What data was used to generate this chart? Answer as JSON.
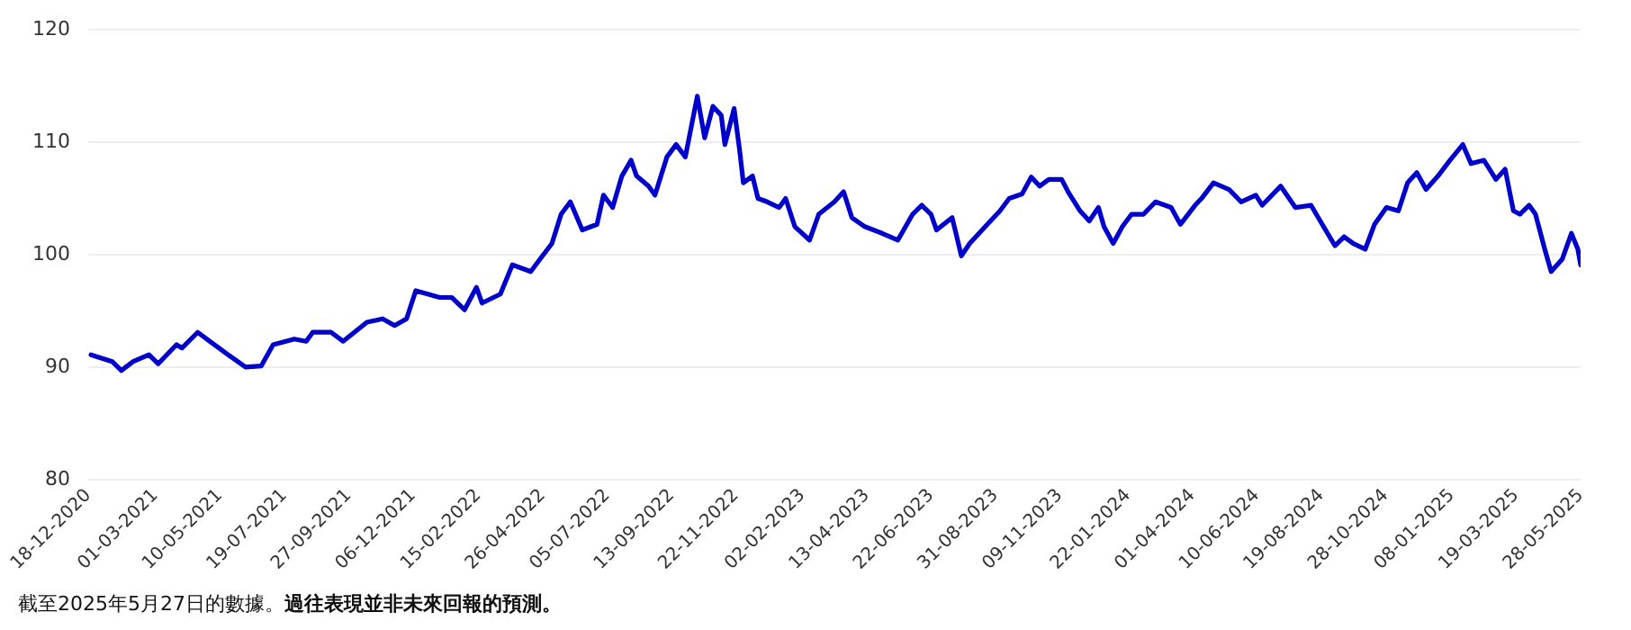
{
  "chart_data": {
    "type": "line",
    "grid": "y",
    "legend": false,
    "marker": "none",
    "line_style": "solid",
    "ylim": [
      80,
      120
    ],
    "yticks": [
      80,
      90,
      100,
      110,
      120
    ],
    "xlim": [
      "2020-12-18",
      "2025-05-28"
    ],
    "xticks": [
      {
        "value": "2020-12-18",
        "label": "18-12-2020"
      },
      {
        "value": "2021-03-01",
        "label": "01-03-2021"
      },
      {
        "value": "2021-05-10",
        "label": "10-05-2021"
      },
      {
        "value": "2021-07-19",
        "label": "19-07-2021"
      },
      {
        "value": "2021-09-27",
        "label": "27-09-2021"
      },
      {
        "value": "2021-12-06",
        "label": "06-12-2021"
      },
      {
        "value": "2022-02-15",
        "label": "15-02-2022"
      },
      {
        "value": "2022-04-26",
        "label": "26-04-2022"
      },
      {
        "value": "2022-07-05",
        "label": "05-07-2022"
      },
      {
        "value": "2022-09-13",
        "label": "13-09-2022"
      },
      {
        "value": "2022-11-22",
        "label": "22-11-2022"
      },
      {
        "value": "2023-02-02",
        "label": "02-02-2023"
      },
      {
        "value": "2023-04-13",
        "label": "13-04-2023"
      },
      {
        "value": "2023-06-22",
        "label": "22-06-2023"
      },
      {
        "value": "2023-08-31",
        "label": "31-08-2023"
      },
      {
        "value": "2023-11-09",
        "label": "09-11-2023"
      },
      {
        "value": "2024-01-22",
        "label": "22-01-2024"
      },
      {
        "value": "2024-04-01",
        "label": "01-04-2024"
      },
      {
        "value": "2024-06-10",
        "label": "10-06-2024"
      },
      {
        "value": "2024-08-19",
        "label": "19-08-2024"
      },
      {
        "value": "2024-10-28",
        "label": "28-10-2024"
      },
      {
        "value": "2025-01-08",
        "label": "08-01-2025"
      },
      {
        "value": "2025-03-19",
        "label": "19-03-2025"
      },
      {
        "value": "2025-05-28",
        "label": "28-05-2025"
      }
    ],
    "x": [
      "2020-12-21",
      "2021-01-13",
      "2021-01-23",
      "2021-02-05",
      "2021-02-22",
      "2021-03-04",
      "2021-03-24",
      "2021-03-30",
      "2021-04-16",
      "2021-04-29",
      "2021-05-19",
      "2021-06-07",
      "2021-06-24",
      "2021-07-07",
      "2021-07-30",
      "2021-08-12",
      "2021-08-19",
      "2021-09-08",
      "2021-09-21",
      "2021-10-17",
      "2021-11-03",
      "2021-11-16",
      "2021-11-29",
      "2021-12-09",
      "2022-01-04",
      "2022-01-17",
      "2022-01-31",
      "2022-02-13",
      "2022-02-19",
      "2022-03-11",
      "2022-03-24",
      "2022-04-13",
      "2022-04-23",
      "2022-05-06",
      "2022-05-16",
      "2022-05-26",
      "2022-06-08",
      "2022-06-24",
      "2022-07-01",
      "2022-07-11",
      "2022-07-21",
      "2022-07-31",
      "2022-08-06",
      "2022-08-19",
      "2022-08-26",
      "2022-09-08",
      "2022-09-18",
      "2022-09-28",
      "2022-10-11",
      "2022-10-19",
      "2022-10-28",
      "2022-11-06",
      "2022-11-10",
      "2022-11-20",
      "2022-11-26",
      "2022-11-30",
      "2022-12-10",
      "2022-12-16",
      "2022-12-26",
      "2023-01-08",
      "2023-01-15",
      "2023-01-25",
      "2023-02-10",
      "2023-02-20",
      "2023-03-09",
      "2023-03-19",
      "2023-03-28",
      "2023-04-11",
      "2023-04-30",
      "2023-05-17",
      "2023-06-02",
      "2023-06-12",
      "2023-06-22",
      "2023-06-28",
      "2023-07-15",
      "2023-07-25",
      "2023-08-03",
      "2023-08-20",
      "2023-09-05",
      "2023-09-15",
      "2023-09-29",
      "2023-10-09",
      "2023-10-18",
      "2023-10-28",
      "2023-11-11",
      "2023-11-18",
      "2023-12-01",
      "2023-12-11",
      "2023-12-21",
      "2023-12-27",
      "2024-01-06",
      "2024-01-16",
      "2024-01-26",
      "2024-02-08",
      "2024-02-21",
      "2024-03-09",
      "2024-03-19",
      "2024-04-04",
      "2024-04-11",
      "2024-04-24",
      "2024-05-11",
      "2024-05-24",
      "2024-06-09",
      "2024-06-16",
      "2024-07-06",
      "2024-07-22",
      "2024-08-08",
      "2024-08-18",
      "2024-09-03",
      "2024-09-13",
      "2024-09-23",
      "2024-10-06",
      "2024-10-16",
      "2024-10-29",
      "2024-11-11",
      "2024-11-21",
      "2024-12-01",
      "2024-12-11",
      "2024-12-24",
      "2025-01-06",
      "2025-01-20",
      "2025-01-29",
      "2025-02-12",
      "2025-02-25",
      "2025-03-07",
      "2025-03-16",
      "2025-03-23",
      "2025-04-02",
      "2025-04-09",
      "2025-04-19",
      "2025-04-26",
      "2025-05-08",
      "2025-05-18",
      "2025-05-25",
      "2025-05-28"
    ],
    "series": [
      {
        "color": "#0000cc",
        "values": [
          91.1,
          90.5,
          89.7,
          90.5,
          91.1,
          90.3,
          92.0,
          91.7,
          93.1,
          92.3,
          91.1,
          90.0,
          90.1,
          92.0,
          92.5,
          92.3,
          93.1,
          93.1,
          92.3,
          94.0,
          94.3,
          93.7,
          94.3,
          96.8,
          96.2,
          96.2,
          95.1,
          97.1,
          95.7,
          96.5,
          99.1,
          98.5,
          99.6,
          101.0,
          103.6,
          104.7,
          102.2,
          102.7,
          105.3,
          104.2,
          107.0,
          108.4,
          107.0,
          106.1,
          105.3,
          108.7,
          109.8,
          108.7,
          114.1,
          110.4,
          113.2,
          112.4,
          109.8,
          113.0,
          109.3,
          106.4,
          107.0,
          105.0,
          104.7,
          104.2,
          105.0,
          102.5,
          101.3,
          103.6,
          104.7,
          105.6,
          103.3,
          102.5,
          101.9,
          101.3,
          103.6,
          104.4,
          103.6,
          102.2,
          103.3,
          99.9,
          101.0,
          102.5,
          103.9,
          105.0,
          105.4,
          106.9,
          106.1,
          106.7,
          106.7,
          105.6,
          103.9,
          103.0,
          104.2,
          102.5,
          101.0,
          102.5,
          103.6,
          103.6,
          104.7,
          104.2,
          102.7,
          104.4,
          105.0,
          106.4,
          105.8,
          104.7,
          105.3,
          104.4,
          106.1,
          104.2,
          104.4,
          103.0,
          100.8,
          101.6,
          101.0,
          100.5,
          102.7,
          104.2,
          103.9,
          106.4,
          107.3,
          105.8,
          107.0,
          108.4,
          109.8,
          108.1,
          108.4,
          106.7,
          107.6,
          103.9,
          103.6,
          104.4,
          103.6,
          100.5,
          98.5,
          99.6,
          101.9,
          100.5,
          99.1
        ]
      }
    ],
    "annotations": [
      "截至2025年5月27日的數據。",
      "過往表現並非未來回報的預測。"
    ]
  }
}
